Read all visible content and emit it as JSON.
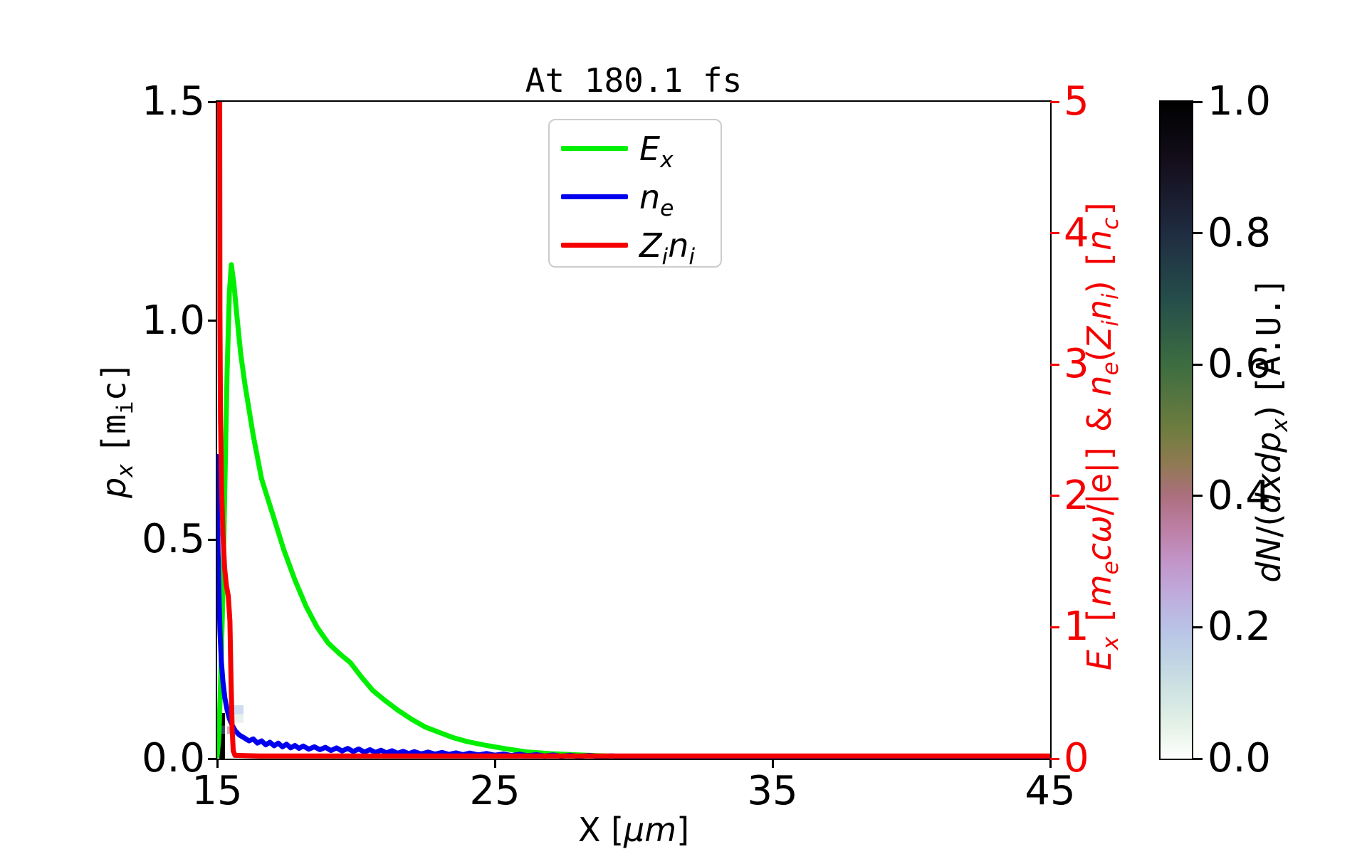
{
  "figure": {
    "title": "At 180.1 fs",
    "background": "#ffffff"
  },
  "axes": {
    "x": {
      "label_html": "X [<i>μm</i>]",
      "label_text": "X [um]",
      "min": 15,
      "max": 45,
      "ticks": [
        {
          "v": 15,
          "label": "15"
        },
        {
          "v": 25,
          "label": "25"
        },
        {
          "v": 35,
          "label": "35"
        },
        {
          "v": 45,
          "label": "45"
        }
      ],
      "color": "#000000"
    },
    "y_left": {
      "label_html": "<i>p<sub>x</sub></i> <span class='mt'>[m<sub>i</sub>c]</span>",
      "label_text": "p_x [m_i c]",
      "min": 0.0,
      "max": 1.5,
      "ticks": [
        {
          "v": 1.5,
          "label": "1.5"
        },
        {
          "v": 1.0,
          "label": "1.0"
        },
        {
          "v": 0.5,
          "label": "0.5"
        },
        {
          "v": 0.0,
          "label": "0.0"
        }
      ],
      "color": "#000000"
    },
    "y_right": {
      "label_html": "<i>E<sub>x</sub></i> <span class='mt'>[</span><i>m<sub>e</sub>cω</i>/|e|<span class='mt'>]</span> &amp; <i>n<sub>e</sub></i>(<i>Z<sub>i</sub>n<sub>i</sub></i>) <span class='mt'>[</span><i>n<sub>c</sub></i><span class='mt'>]</span>",
      "label_text": "E_x [m_e c w/|e|] & n_e(Z_i n_i) [n_c]",
      "min": 0,
      "max": 5,
      "ticks": [
        {
          "v": 5,
          "label": "5"
        },
        {
          "v": 4,
          "label": "4"
        },
        {
          "v": 3,
          "label": "3"
        },
        {
          "v": 2,
          "label": "2"
        },
        {
          "v": 1,
          "label": "1"
        },
        {
          "v": 0,
          "label": "0"
        }
      ],
      "color": "#f40000"
    }
  },
  "legend": {
    "entries": [
      {
        "label_html": "<i>E<sub>x</sub></i>",
        "label_text": "E_x",
        "color": "#00ef00"
      },
      {
        "label_html": "<i>n<sub>e</sub></i>",
        "label_text": "n_e",
        "color": "#0000ee"
      },
      {
        "label_html": "<i>Z<sub>i</sub>n<sub>i</sub></i>",
        "label_text": "Z_i n_i",
        "color": "#f40000"
      }
    ]
  },
  "colorbar": {
    "label_html": "<i>dN</i>/(<i>dxdp<sub>x</sub></i>) <span class='mt'>[A.U.]</span>",
    "label_text": "dN/(dxdp_x) [A.U.]",
    "min": 0.0,
    "max": 1.0,
    "ticks": [
      {
        "v": 1.0,
        "label": "1.0"
      },
      {
        "v": 0.8,
        "label": "0.8"
      },
      {
        "v": 0.6,
        "label": "0.6"
      },
      {
        "v": 0.4,
        "label": "0.4"
      },
      {
        "v": 0.2,
        "label": "0.2"
      },
      {
        "v": 0.0,
        "label": "0.0"
      }
    ],
    "gradient_stops": [
      [
        1.0,
        "#000000"
      ],
      [
        0.9,
        "#16101f"
      ],
      [
        0.8,
        "#1f2c41"
      ],
      [
        0.7,
        "#254d4b"
      ],
      [
        0.6,
        "#3c6d40"
      ],
      [
        0.5,
        "#6f7d3f"
      ],
      [
        0.45,
        "#8f7a52"
      ],
      [
        0.4,
        "#ab6f7e"
      ],
      [
        0.35,
        "#bd7fa5"
      ],
      [
        0.3,
        "#c295c9"
      ],
      [
        0.25,
        "#bfabdd"
      ],
      [
        0.2,
        "#b9c2e6"
      ],
      [
        0.15,
        "#c0d4e4"
      ],
      [
        0.1,
        "#d0e4e2"
      ],
      [
        0.05,
        "#e4f1e7"
      ],
      [
        0.0,
        "#ffffff"
      ]
    ]
  },
  "chart_data": {
    "type": "line",
    "title": "At 180.1 fs",
    "xlabel": "X [um]",
    "ylabel_left": "p_x [m_i c]",
    "ylabel_right": "E_x [m_e c w/|e|] & n_e(Z_i n_i) [n_c]",
    "x_range": [
      15,
      45
    ],
    "y_left_range": [
      0.0,
      1.5
    ],
    "y_right_range": [
      0,
      5
    ],
    "grid": false,
    "legend_position": "upper center",
    "series": [
      {
        "name": "E_x",
        "color": "#00ef00",
        "axis": "right",
        "linewidth": 7,
        "points": [
          [
            15.0,
            0.02
          ],
          [
            15.06,
            0.15
          ],
          [
            15.12,
            0.55
          ],
          [
            15.2,
            1.2
          ],
          [
            15.28,
            2.1
          ],
          [
            15.36,
            2.95
          ],
          [
            15.44,
            3.55
          ],
          [
            15.51,
            3.76
          ],
          [
            15.6,
            3.62
          ],
          [
            15.72,
            3.35
          ],
          [
            15.85,
            3.08
          ],
          [
            16.0,
            2.85
          ],
          [
            16.3,
            2.46
          ],
          [
            16.6,
            2.13
          ],
          [
            17.0,
            1.86
          ],
          [
            17.4,
            1.59
          ],
          [
            17.8,
            1.36
          ],
          [
            18.2,
            1.16
          ],
          [
            18.6,
            1.0
          ],
          [
            19.0,
            0.88
          ],
          [
            19.4,
            0.8
          ],
          [
            19.8,
            0.73
          ],
          [
            20.2,
            0.62
          ],
          [
            20.6,
            0.52
          ],
          [
            21.0,
            0.45
          ],
          [
            21.5,
            0.37
          ],
          [
            22.0,
            0.3
          ],
          [
            22.5,
            0.24
          ],
          [
            23.0,
            0.2
          ],
          [
            23.5,
            0.16
          ],
          [
            24.0,
            0.13
          ],
          [
            24.7,
            0.1
          ],
          [
            25.4,
            0.075
          ],
          [
            26.2,
            0.05
          ],
          [
            27.0,
            0.038
          ],
          [
            28.0,
            0.028
          ],
          [
            29.0,
            0.02
          ],
          [
            30.0,
            0.015
          ],
          [
            31.0,
            0.011
          ],
          [
            32.5,
            0.008
          ],
          [
            34.0,
            0.006
          ],
          [
            36.0,
            0.005
          ],
          [
            40.0,
            0.004
          ],
          [
            45.0,
            0.003
          ]
        ]
      },
      {
        "name": "n_e",
        "color": "#0000ee",
        "axis": "right",
        "linewidth": 7,
        "points": [
          [
            15.0,
            2.3
          ],
          [
            15.01,
            1.9
          ],
          [
            15.03,
            1.6
          ],
          [
            15.06,
            1.3
          ],
          [
            15.1,
            0.98
          ],
          [
            15.15,
            0.74
          ],
          [
            15.21,
            0.58
          ],
          [
            15.28,
            0.46
          ],
          [
            15.36,
            0.37
          ],
          [
            15.45,
            0.3
          ],
          [
            15.55,
            0.25
          ],
          [
            15.66,
            0.21
          ],
          [
            15.8,
            0.18
          ],
          [
            16.0,
            0.155
          ],
          [
            16.15,
            0.135
          ],
          [
            16.3,
            0.15
          ],
          [
            16.45,
            0.118
          ],
          [
            16.6,
            0.135
          ],
          [
            16.75,
            0.105
          ],
          [
            16.9,
            0.125
          ],
          [
            17.05,
            0.098
          ],
          [
            17.2,
            0.118
          ],
          [
            17.35,
            0.09
          ],
          [
            17.5,
            0.11
          ],
          [
            17.65,
            0.082
          ],
          [
            17.8,
            0.1
          ],
          [
            17.95,
            0.078
          ],
          [
            18.1,
            0.096
          ],
          [
            18.3,
            0.072
          ],
          [
            18.5,
            0.09
          ],
          [
            18.7,
            0.068
          ],
          [
            18.9,
            0.086
          ],
          [
            19.1,
            0.062
          ],
          [
            19.3,
            0.082
          ],
          [
            19.5,
            0.058
          ],
          [
            19.7,
            0.078
          ],
          [
            19.9,
            0.054
          ],
          [
            20.1,
            0.073
          ],
          [
            20.3,
            0.05
          ],
          [
            20.5,
            0.068
          ],
          [
            20.7,
            0.047
          ],
          [
            20.9,
            0.064
          ],
          [
            21.1,
            0.044
          ],
          [
            21.3,
            0.06
          ],
          [
            21.5,
            0.041
          ],
          [
            21.7,
            0.056
          ],
          [
            21.9,
            0.038
          ],
          [
            22.1,
            0.053
          ],
          [
            22.35,
            0.036
          ],
          [
            22.6,
            0.05
          ],
          [
            22.85,
            0.034
          ],
          [
            23.1,
            0.047
          ],
          [
            23.35,
            0.032
          ],
          [
            23.6,
            0.044
          ],
          [
            23.85,
            0.03
          ],
          [
            24.1,
            0.042
          ],
          [
            24.4,
            0.028
          ],
          [
            24.7,
            0.039
          ],
          [
            25.0,
            0.026
          ],
          [
            25.3,
            0.036
          ],
          [
            25.6,
            0.024
          ],
          [
            25.9,
            0.033
          ],
          [
            26.2,
            0.022
          ],
          [
            26.5,
            0.03
          ],
          [
            26.8,
            0.02
          ],
          [
            27.1,
            0.028
          ],
          [
            27.4,
            0.018
          ],
          [
            27.7,
            0.026
          ],
          [
            28.0,
            0.017
          ],
          [
            28.4,
            0.024
          ],
          [
            28.8,
            0.015
          ],
          [
            29.2,
            0.021
          ],
          [
            29.6,
            0.014
          ],
          [
            30.0,
            0.019
          ],
          [
            30.5,
            0.012
          ],
          [
            31.0,
            0.016
          ],
          [
            31.5,
            0.01
          ],
          [
            32.0,
            0.014
          ],
          [
            32.5,
            0.009
          ],
          [
            33.0,
            0.012
          ],
          [
            33.5,
            0.008
          ],
          [
            34.0,
            0.011
          ],
          [
            34.5,
            0.007
          ],
          [
            35.0,
            0.009
          ],
          [
            36.0,
            0.006
          ],
          [
            37.0,
            0.008
          ],
          [
            38.0,
            0.005
          ],
          [
            39.0,
            0.006
          ],
          [
            40.0,
            0.004
          ],
          [
            41.0,
            0.005
          ],
          [
            42.0,
            0.003
          ],
          [
            43.0,
            0.004
          ],
          [
            44.0,
            0.003
          ],
          [
            45.0,
            0.003
          ]
        ]
      },
      {
        "name": "Z_i n_i",
        "color": "#f40000",
        "axis": "right",
        "linewidth": 7,
        "points": [
          [
            15.09,
            5.2
          ],
          [
            15.1,
            3.4
          ],
          [
            15.12,
            2.6
          ],
          [
            15.16,
            2.05
          ],
          [
            15.21,
            1.7
          ],
          [
            15.27,
            1.45
          ],
          [
            15.33,
            1.32
          ],
          [
            15.4,
            1.24
          ],
          [
            15.46,
            1.05
          ],
          [
            15.5,
            0.6
          ],
          [
            15.54,
            0.22
          ],
          [
            15.58,
            0.06
          ],
          [
            15.64,
            0.025
          ],
          [
            16.5,
            0.02
          ],
          [
            45.0,
            0.02
          ]
        ]
      }
    ],
    "histogram": {
      "quantity": "dN/(dxdp_x) [A.U.]",
      "axis": "left",
      "cells": [
        {
          "x0": 15.08,
          "x1": 15.28,
          "p0": 0.0,
          "p1": 0.057,
          "value": 1.0,
          "color": "#000000"
        },
        {
          "x0": 15.08,
          "x1": 15.28,
          "p0": 0.057,
          "p1": 0.075,
          "value": 0.85,
          "color": "#2e3c59"
        },
        {
          "x0": 15.08,
          "x1": 15.28,
          "p0": 0.075,
          "p1": 0.104,
          "value": 1.0,
          "color": "#000000"
        },
        {
          "x0": 15.36,
          "x1": 15.51,
          "p0": 0.056,
          "p1": 0.074,
          "value": 0.33,
          "color": "#dcaabc"
        },
        {
          "x0": 15.56,
          "x1": 15.95,
          "p0": 0.101,
          "p1": 0.122,
          "value": 0.18,
          "color": "#cddcf0"
        },
        {
          "x0": 15.56,
          "x1": 15.95,
          "p0": 0.082,
          "p1": 0.101,
          "value": 0.05,
          "color": "#e7f2ec"
        }
      ]
    }
  }
}
